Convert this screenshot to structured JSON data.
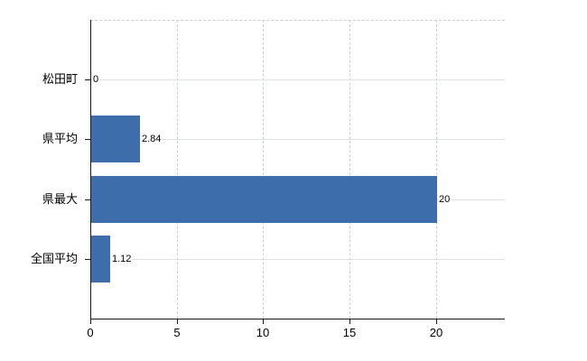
{
  "chart_data": {
    "type": "bar",
    "orientation": "horizontal",
    "title": "",
    "categories": [
      "松田町",
      "県平均",
      "県最大",
      "全国平均"
    ],
    "values": [
      0,
      2.84,
      20,
      1.12
    ],
    "value_labels": [
      "0",
      "2.84",
      "20",
      "1.12"
    ],
    "xlabel": "",
    "ylabel": "",
    "xlim": [
      0,
      24
    ],
    "x_ticks": [
      0,
      5,
      10,
      15,
      20
    ],
    "x_tick_labels": [
      "0",
      "5",
      "10",
      "15",
      "20"
    ],
    "grid": true,
    "legend_position": "none"
  },
  "colors": {
    "bar": "#3e6dab",
    "axis": "#1a1a1a",
    "grid_vertical_dashed": "#c6d2c6",
    "grid_horizontal": "#dce3dc",
    "plot_top_border_dashed": "#c9cfc9",
    "text": "#000000",
    "background": "#ffffff"
  }
}
